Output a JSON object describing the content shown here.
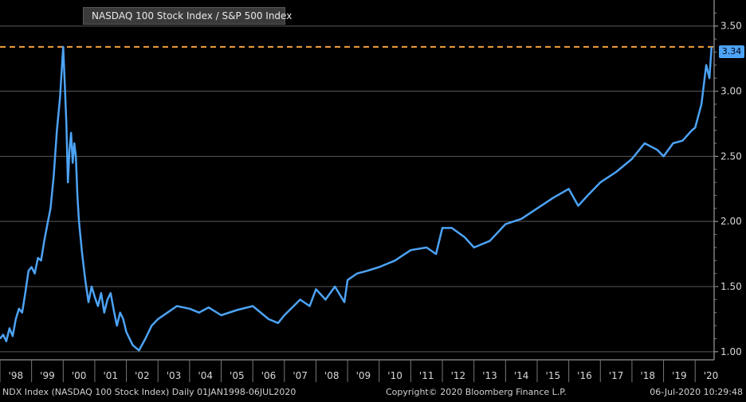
{
  "legend": {
    "label": "NASDAQ 100 Stock Index / S&P 500 Index"
  },
  "last_value_label": "3.34",
  "footer": {
    "left": "NDX Index (NASDAQ 100 Stock Index)  Daily 01JAN1998-06JUL2020",
    "center": "Copyright© 2020 Bloomberg Finance L.P.",
    "right": "06-Jul-2020 10:29:48"
  },
  "colors": {
    "series": "#4da3f5",
    "reference_line": "#f5a040",
    "grid": "#5a5a5a",
    "background": "#000000"
  },
  "chart_data": {
    "type": "line",
    "title": "",
    "xlabel": "",
    "ylabel": "",
    "x_ticks": [
      "'98",
      "'99",
      "'00",
      "'01",
      "'02",
      "'03",
      "'04",
      "'05",
      "'06",
      "'07",
      "'08",
      "'09",
      "'10",
      "'11",
      "'12",
      "'13",
      "'14",
      "'15",
      "'16",
      "'17",
      "'18",
      "'19",
      "'20"
    ],
    "y_ticks": [
      "1.00",
      "1.50",
      "2.00",
      "2.50",
      "3.00",
      "3.50"
    ],
    "ylim": [
      0.95,
      3.7
    ],
    "xlim": [
      1998.0,
      2020.6
    ],
    "reference_line": {
      "value": 3.34,
      "style": "dashed"
    },
    "series": [
      {
        "name": "NASDAQ 100 Stock Index / S&P 500 Index",
        "x": [
          1998.0,
          1998.1,
          1998.2,
          1998.3,
          1998.4,
          1998.5,
          1998.6,
          1998.7,
          1998.8,
          1998.9,
          1999.0,
          1999.1,
          1999.2,
          1999.3,
          1999.4,
          1999.5,
          1999.6,
          1999.7,
          1999.8,
          1999.9,
          2000.0,
          2000.05,
          2000.1,
          2000.15,
          2000.2,
          2000.25,
          2000.3,
          2000.35,
          2000.4,
          2000.45,
          2000.5,
          2000.6,
          2000.7,
          2000.8,
          2000.9,
          2001.0,
          2001.1,
          2001.2,
          2001.3,
          2001.4,
          2001.5,
          2001.6,
          2001.7,
          2001.8,
          2001.9,
          2002.0,
          2002.2,
          2002.4,
          2002.6,
          2002.8,
          2003.0,
          2003.3,
          2003.6,
          2004.0,
          2004.3,
          2004.6,
          2005.0,
          2005.5,
          2006.0,
          2006.5,
          2006.8,
          2007.0,
          2007.5,
          2007.8,
          2008.0,
          2008.3,
          2008.6,
          2008.9,
          2009.0,
          2009.3,
          2009.6,
          2010.0,
          2010.5,
          2011.0,
          2011.5,
          2011.8,
          2012.0,
          2012.3,
          2012.7,
          2013.0,
          2013.5,
          2014.0,
          2014.5,
          2015.0,
          2015.5,
          2016.0,
          2016.3,
          2016.6,
          2017.0,
          2017.5,
          2018.0,
          2018.4,
          2018.8,
          2019.0,
          2019.3,
          2019.6,
          2019.9,
          2020.0,
          2020.2,
          2020.35,
          2020.45,
          2020.52
        ],
        "values": [
          1.1,
          1.13,
          1.08,
          1.18,
          1.12,
          1.25,
          1.33,
          1.3,
          1.45,
          1.62,
          1.65,
          1.6,
          1.72,
          1.7,
          1.85,
          1.98,
          2.1,
          2.35,
          2.7,
          2.95,
          3.34,
          3.05,
          2.75,
          2.3,
          2.55,
          2.68,
          2.45,
          2.6,
          2.5,
          2.2,
          2.0,
          1.75,
          1.55,
          1.38,
          1.5,
          1.42,
          1.35,
          1.45,
          1.3,
          1.4,
          1.45,
          1.32,
          1.2,
          1.3,
          1.25,
          1.15,
          1.05,
          1.01,
          1.1,
          1.2,
          1.25,
          1.3,
          1.35,
          1.33,
          1.3,
          1.34,
          1.28,
          1.32,
          1.35,
          1.25,
          1.22,
          1.28,
          1.4,
          1.35,
          1.48,
          1.4,
          1.5,
          1.38,
          1.55,
          1.6,
          1.62,
          1.65,
          1.7,
          1.78,
          1.8,
          1.75,
          1.95,
          1.95,
          1.88,
          1.8,
          1.85,
          1.98,
          2.02,
          2.1,
          2.18,
          2.25,
          2.12,
          2.2,
          2.3,
          2.38,
          2.48,
          2.6,
          2.55,
          2.5,
          2.6,
          2.62,
          2.7,
          2.72,
          2.9,
          3.2,
          3.1,
          3.34
        ]
      }
    ]
  }
}
